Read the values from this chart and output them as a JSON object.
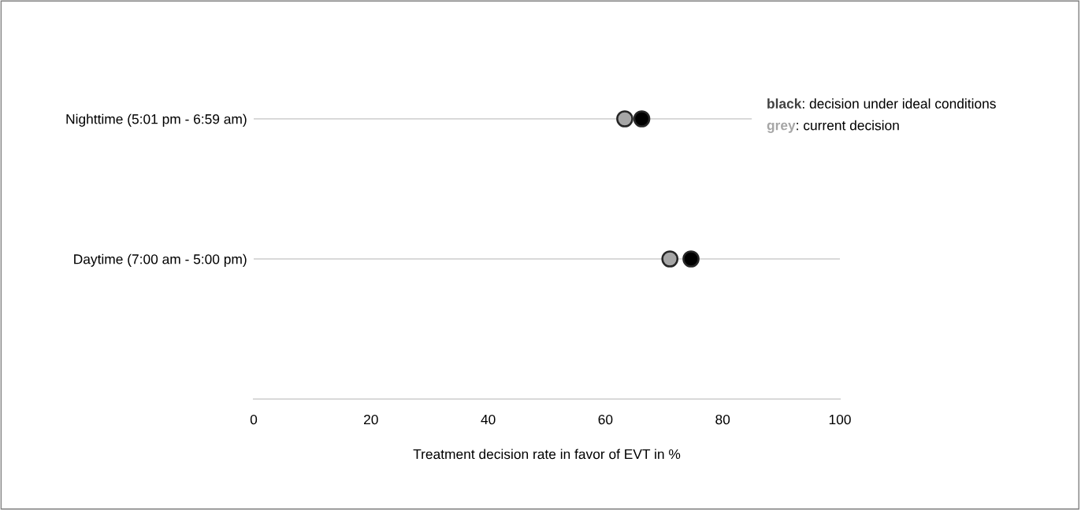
{
  "chart_data": {
    "type": "scatter",
    "categories": [
      "Nighttime (5:01 pm - 6:59 am)",
      "Daytime (7:00 am - 5:00 pm)"
    ],
    "orientation": "horizontal",
    "series": [
      {
        "color": "#a6a6a6",
        "values": [
          63.3,
          71.0
        ]
      },
      {
        "color": "#000000",
        "values": [
          66.2,
          74.6
        ]
      }
    ],
    "xlabel": "Treatment decision rate in favor of EVT in %",
    "xlim": [
      0,
      100
    ],
    "xticks": [
      0,
      20,
      40,
      60,
      80,
      100
    ],
    "grid": "y",
    "marker": "circle",
    "annotations": [
      "black: decision under ideal conditions",
      "grey: current decision"
    ]
  }
}
